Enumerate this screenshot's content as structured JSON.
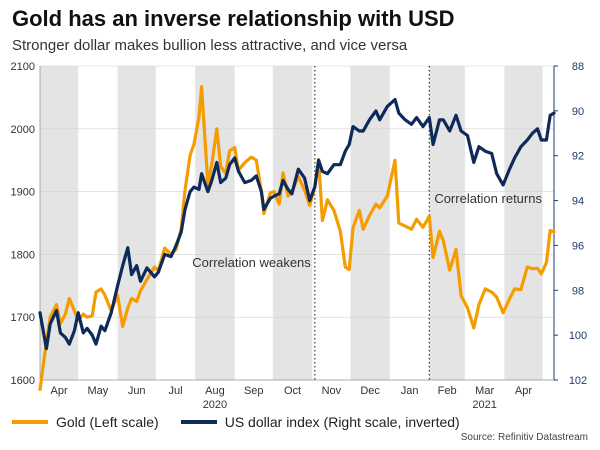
{
  "title": "Gold has an inverse relationship with USD",
  "subtitle": "Stronger dollar makes bullion less attractive, and vice versa",
  "source": "Source: Refinitiv Datastream",
  "colors": {
    "gold": "#f59c00",
    "usd": "#0d2a5a",
    "shade": "#e4e4e4",
    "grid": "#d0d0d0",
    "axis_right": "#1e3a6e"
  },
  "legend": [
    {
      "label": "Gold (Left scale)",
      "color": "#f59c00"
    },
    {
      "label": "US dollar index (Right scale, inverted)",
      "color": "#0d2a5a"
    }
  ],
  "chart_data": {
    "type": "line",
    "title": "Gold has an inverse relationship with USD",
    "subtitle": "Stronger dollar makes bullion less attractive, and vice versa",
    "x_month_labels": [
      "Apr",
      "May",
      "Jun",
      "Jul",
      "Aug",
      "Sep",
      "Oct",
      "Nov",
      "Dec",
      "Jan",
      "Feb",
      "Mar",
      "Apr"
    ],
    "x_year_labels": [
      {
        "label": "2020",
        "month": "Aug"
      },
      {
        "label": "2021",
        "month": "Mar"
      }
    ],
    "x_range": [
      "2020-04-01",
      "2021-05-10"
    ],
    "y_left": {
      "label": "Gold (Left scale)",
      "lim": [
        1600,
        2100
      ],
      "ticks": [
        1600,
        1700,
        1800,
        1900,
        2000,
        2100
      ]
    },
    "y_right": {
      "label": "US dollar index (Right scale, inverted)",
      "lim": [
        102,
        88
      ],
      "inverted": true,
      "ticks": [
        88,
        90,
        92,
        94,
        96,
        98,
        100,
        102
      ]
    },
    "shaded_months": "alternating",
    "grid": "horizontal",
    "annotations": [
      {
        "text": "Correlation weakens",
        "date": "2020-11-03"
      },
      {
        "text": "Correlation returns",
        "date": "2021-02-01"
      }
    ],
    "series": [
      {
        "name": "Gold (Left scale)",
        "axis": "left",
        "points": [
          [
            "2020-04-01",
            1585
          ],
          [
            "2020-04-06",
            1660
          ],
          [
            "2020-04-09",
            1700
          ],
          [
            "2020-04-14",
            1720
          ],
          [
            "2020-04-17",
            1690
          ],
          [
            "2020-04-21",
            1705
          ],
          [
            "2020-04-24",
            1730
          ],
          [
            "2020-04-28",
            1710
          ],
          [
            "2020-05-01",
            1695
          ],
          [
            "2020-05-05",
            1705
          ],
          [
            "2020-05-08",
            1700
          ],
          [
            "2020-05-12",
            1702
          ],
          [
            "2020-05-15",
            1740
          ],
          [
            "2020-05-19",
            1745
          ],
          [
            "2020-05-22",
            1735
          ],
          [
            "2020-05-27",
            1710
          ],
          [
            "2020-06-01",
            1735
          ],
          [
            "2020-06-05",
            1685
          ],
          [
            "2020-06-09",
            1715
          ],
          [
            "2020-06-12",
            1730
          ],
          [
            "2020-06-16",
            1725
          ],
          [
            "2020-06-19",
            1742
          ],
          [
            "2020-06-24",
            1760
          ],
          [
            "2020-06-30",
            1780
          ],
          [
            "2020-07-03",
            1774
          ],
          [
            "2020-07-08",
            1810
          ],
          [
            "2020-07-13",
            1800
          ],
          [
            "2020-07-17",
            1808
          ],
          [
            "2020-07-21",
            1841
          ],
          [
            "2020-07-24",
            1902
          ],
          [
            "2020-07-28",
            1958
          ],
          [
            "2020-07-31",
            1975
          ],
          [
            "2020-08-04",
            2019
          ],
          [
            "2020-08-06",
            2067
          ],
          [
            "2020-08-11",
            1911
          ],
          [
            "2020-08-14",
            1944
          ],
          [
            "2020-08-18",
            2000
          ],
          [
            "2020-08-21",
            1940
          ],
          [
            "2020-08-25",
            1929
          ],
          [
            "2020-08-28",
            1965
          ],
          [
            "2020-09-01",
            1970
          ],
          [
            "2020-09-04",
            1934
          ],
          [
            "2020-09-09",
            1946
          ],
          [
            "2020-09-14",
            1955
          ],
          [
            "2020-09-18",
            1950
          ],
          [
            "2020-09-22",
            1900
          ],
          [
            "2020-09-24",
            1865
          ],
          [
            "2020-09-29",
            1898
          ],
          [
            "2020-10-02",
            1900
          ],
          [
            "2020-10-06",
            1880
          ],
          [
            "2020-10-09",
            1930
          ],
          [
            "2020-10-13",
            1893
          ],
          [
            "2020-10-16",
            1900
          ],
          [
            "2020-10-21",
            1924
          ],
          [
            "2020-10-26",
            1902
          ],
          [
            "2020-10-30",
            1878
          ],
          [
            "2020-11-03",
            1908
          ],
          [
            "2020-11-06",
            1951
          ],
          [
            "2020-11-09",
            1854
          ],
          [
            "2020-11-13",
            1887
          ],
          [
            "2020-11-18",
            1870
          ],
          [
            "2020-11-23",
            1837
          ],
          [
            "2020-11-27",
            1780
          ],
          [
            "2020-11-30",
            1776
          ],
          [
            "2020-12-03",
            1842
          ],
          [
            "2020-12-08",
            1870
          ],
          [
            "2020-12-11",
            1840
          ],
          [
            "2020-12-16",
            1862
          ],
          [
            "2020-12-21",
            1880
          ],
          [
            "2020-12-24",
            1874
          ],
          [
            "2020-12-30",
            1893
          ],
          [
            "2021-01-05",
            1950
          ],
          [
            "2021-01-08",
            1850
          ],
          [
            "2021-01-13",
            1845
          ],
          [
            "2021-01-18",
            1840
          ],
          [
            "2021-01-22",
            1856
          ],
          [
            "2021-01-27",
            1843
          ],
          [
            "2021-02-01",
            1861
          ],
          [
            "2021-02-04",
            1795
          ],
          [
            "2021-02-09",
            1837
          ],
          [
            "2021-02-12",
            1822
          ],
          [
            "2021-02-17",
            1775
          ],
          [
            "2021-02-22",
            1808
          ],
          [
            "2021-02-26",
            1734
          ],
          [
            "2021-03-03",
            1715
          ],
          [
            "2021-03-08",
            1683
          ],
          [
            "2021-03-12",
            1720
          ],
          [
            "2021-03-17",
            1745
          ],
          [
            "2021-03-22",
            1740
          ],
          [
            "2021-03-26",
            1732
          ],
          [
            "2021-03-31",
            1707
          ],
          [
            "2021-04-05",
            1729
          ],
          [
            "2021-04-09",
            1745
          ],
          [
            "2021-04-14",
            1744
          ],
          [
            "2021-04-19",
            1780
          ],
          [
            "2021-04-23",
            1777
          ],
          [
            "2021-04-27",
            1778
          ],
          [
            "2021-04-30",
            1769
          ],
          [
            "2021-05-04",
            1787
          ],
          [
            "2021-05-07",
            1838
          ],
          [
            "2021-05-10",
            1836
          ]
        ]
      },
      {
        "name": "US dollar index (Right scale, inverted)",
        "axis": "right",
        "points": [
          [
            "2020-04-01",
            99.0
          ],
          [
            "2020-04-06",
            100.6
          ],
          [
            "2020-04-09",
            99.5
          ],
          [
            "2020-04-14",
            98.9
          ],
          [
            "2020-04-17",
            99.9
          ],
          [
            "2020-04-21",
            100.1
          ],
          [
            "2020-04-24",
            100.4
          ],
          [
            "2020-04-28",
            99.8
          ],
          [
            "2020-05-01",
            99.0
          ],
          [
            "2020-05-05",
            99.9
          ],
          [
            "2020-05-08",
            99.7
          ],
          [
            "2020-05-12",
            100.0
          ],
          [
            "2020-05-15",
            100.4
          ],
          [
            "2020-05-19",
            99.6
          ],
          [
            "2020-05-22",
            99.8
          ],
          [
            "2020-05-27",
            99.0
          ],
          [
            "2020-06-01",
            97.8
          ],
          [
            "2020-06-05",
            96.9
          ],
          [
            "2020-06-09",
            96.1
          ],
          [
            "2020-06-12",
            97.3
          ],
          [
            "2020-06-16",
            96.9
          ],
          [
            "2020-06-19",
            97.6
          ],
          [
            "2020-06-24",
            97.0
          ],
          [
            "2020-06-30",
            97.4
          ],
          [
            "2020-07-03",
            97.2
          ],
          [
            "2020-07-08",
            96.4
          ],
          [
            "2020-07-13",
            96.5
          ],
          [
            "2020-07-17",
            96.0
          ],
          [
            "2020-07-21",
            95.4
          ],
          [
            "2020-07-24",
            94.4
          ],
          [
            "2020-07-28",
            93.6
          ],
          [
            "2020-07-31",
            93.4
          ],
          [
            "2020-08-04",
            93.5
          ],
          [
            "2020-08-06",
            92.8
          ],
          [
            "2020-08-11",
            93.6
          ],
          [
            "2020-08-14",
            93.1
          ],
          [
            "2020-08-18",
            92.3
          ],
          [
            "2020-08-21",
            93.2
          ],
          [
            "2020-08-25",
            93.0
          ],
          [
            "2020-08-28",
            92.4
          ],
          [
            "2020-09-01",
            92.1
          ],
          [
            "2020-09-04",
            92.7
          ],
          [
            "2020-09-09",
            93.2
          ],
          [
            "2020-09-14",
            93.1
          ],
          [
            "2020-09-18",
            92.9
          ],
          [
            "2020-09-22",
            93.6
          ],
          [
            "2020-09-24",
            94.4
          ],
          [
            "2020-09-29",
            93.9
          ],
          [
            "2020-10-02",
            93.8
          ],
          [
            "2020-10-06",
            93.7
          ],
          [
            "2020-10-09",
            93.1
          ],
          [
            "2020-10-13",
            93.5
          ],
          [
            "2020-10-16",
            93.7
          ],
          [
            "2020-10-21",
            92.6
          ],
          [
            "2020-10-26",
            93.0
          ],
          [
            "2020-10-30",
            94.0
          ],
          [
            "2020-11-03",
            93.4
          ],
          [
            "2020-11-06",
            92.2
          ],
          [
            "2020-11-09",
            92.7
          ],
          [
            "2020-11-13",
            92.8
          ],
          [
            "2020-11-18",
            92.4
          ],
          [
            "2020-11-23",
            92.4
          ],
          [
            "2020-11-27",
            91.8
          ],
          [
            "2020-11-30",
            91.5
          ],
          [
            "2020-12-03",
            90.7
          ],
          [
            "2020-12-08",
            90.9
          ],
          [
            "2020-12-11",
            90.9
          ],
          [
            "2020-12-16",
            90.4
          ],
          [
            "2020-12-21",
            90.0
          ],
          [
            "2020-12-24",
            90.4
          ],
          [
            "2020-12-30",
            89.8
          ],
          [
            "2021-01-05",
            89.5
          ],
          [
            "2021-01-08",
            90.1
          ],
          [
            "2021-01-13",
            90.4
          ],
          [
            "2021-01-18",
            90.6
          ],
          [
            "2021-01-22",
            90.3
          ],
          [
            "2021-01-27",
            90.7
          ],
          [
            "2021-02-01",
            90.3
          ],
          [
            "2021-02-04",
            91.5
          ],
          [
            "2021-02-09",
            90.4
          ],
          [
            "2021-02-12",
            90.4
          ],
          [
            "2021-02-17",
            90.9
          ],
          [
            "2021-02-22",
            90.2
          ],
          [
            "2021-02-26",
            90.9
          ],
          [
            "2021-03-03",
            91.1
          ],
          [
            "2021-03-08",
            92.3
          ],
          [
            "2021-03-12",
            91.6
          ],
          [
            "2021-03-17",
            91.8
          ],
          [
            "2021-03-22",
            91.9
          ],
          [
            "2021-03-26",
            92.8
          ],
          [
            "2021-03-31",
            93.3
          ],
          [
            "2021-04-05",
            92.6
          ],
          [
            "2021-04-09",
            92.1
          ],
          [
            "2021-04-14",
            91.6
          ],
          [
            "2021-04-19",
            91.3
          ],
          [
            "2021-04-23",
            91.0
          ],
          [
            "2021-04-27",
            90.8
          ],
          [
            "2021-04-30",
            91.3
          ],
          [
            "2021-05-04",
            91.3
          ],
          [
            "2021-05-07",
            90.2
          ],
          [
            "2021-05-10",
            90.1
          ]
        ]
      }
    ]
  }
}
